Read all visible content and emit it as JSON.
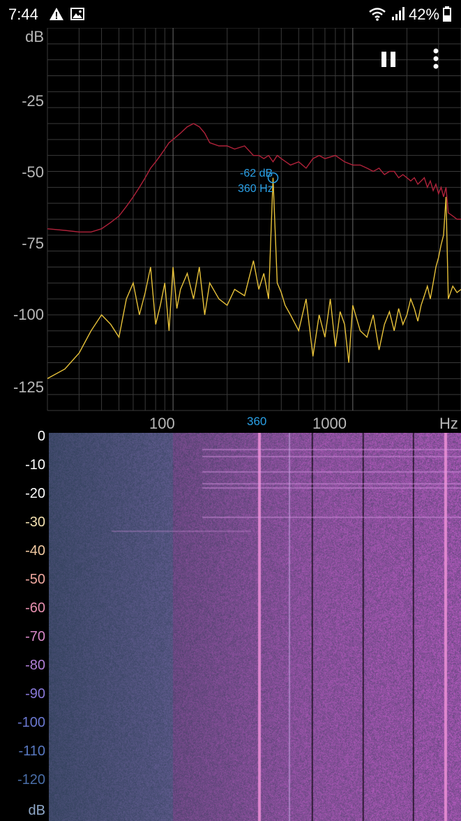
{
  "status_bar": {
    "time": "7:44",
    "battery": "42%",
    "icons": [
      "warning-icon",
      "gallery-icon",
      "wifi-icon",
      "signal-icon",
      "battery-icon"
    ]
  },
  "spectrum": {
    "y_unit": "dB",
    "y_ticks": [
      "-25",
      "-50",
      "-75",
      "-100",
      "-125"
    ],
    "x_ticks": [
      "100",
      "1000"
    ],
    "x_unit": "Hz",
    "marker_freq_label": "360",
    "peak": {
      "db_label": "-62 dB",
      "hz_label": "360 Hz"
    },
    "colors": {
      "grid": "#3a3a3a",
      "live_trace": "#e8c23a",
      "peak_hold_trace": "#b0223a",
      "marker": "#2aa0e6",
      "label": "#b8b8b8"
    }
  },
  "toolbar": {
    "pause_icon": "pause-icon",
    "menu_icon": "more-vertical-icon"
  },
  "spectrogram": {
    "scale_labels": [
      "0",
      "-10",
      "-20",
      "-30",
      "-40",
      "-50",
      "-60",
      "-70",
      "-80",
      "-90",
      "-100",
      "-110",
      "-120"
    ],
    "scale_unit": "dB",
    "scale_colors": [
      "#ffffff",
      "#ffffff",
      "#ffffff",
      "#f2e0b0",
      "#f0c8a0",
      "#f0a8a0",
      "#e890b0",
      "#d888c8",
      "#b080d8",
      "#8878d8",
      "#6a78d0",
      "#5878c0",
      "#4a6ea8"
    ]
  },
  "chart_data": {
    "type": "line",
    "xlabel": "Hz",
    "ylabel": "dB",
    "x_scale": "log",
    "xlim": [
      20,
      4000
    ],
    "ylim": [
      -135,
      -15
    ],
    "series": [
      {
        "x": [
          20,
          25,
          30,
          35,
          40,
          45,
          50,
          55,
          60,
          65,
          70,
          75,
          80,
          85,
          90,
          95,
          100,
          105,
          110,
          120,
          130,
          140,
          150,
          160,
          180,
          200,
          220,
          250,
          280,
          300,
          320,
          340,
          360,
          380,
          400,
          420,
          450,
          500,
          550,
          600,
          650,
          700,
          750,
          800,
          850,
          900,
          950,
          1000,
          1100,
          1200,
          1300,
          1400,
          1500,
          1600,
          1700,
          1800,
          1900,
          2000,
          2100,
          2200,
          2300,
          2400,
          2500,
          2600,
          2700,
          2800,
          2900,
          3000,
          3100,
          3200,
          3300,
          3400,
          3600,
          3800,
          4000
        ],
        "values": [
          -125,
          -122,
          -117,
          -110,
          -105,
          -108,
          -112,
          -100,
          -95,
          -105,
          -98,
          -90,
          -108,
          -102,
          -95,
          -110,
          -90,
          -103,
          -97,
          -92,
          -100,
          -90,
          -105,
          -95,
          -100,
          -102,
          -97,
          -99,
          -88,
          -97,
          -92,
          -100,
          -62,
          -95,
          -98,
          -102,
          -105,
          -110,
          -100,
          -118,
          -105,
          -112,
          -100,
          -115,
          -104,
          -108,
          -120,
          -102,
          -110,
          -112,
          -105,
          -116,
          -108,
          -104,
          -110,
          -103,
          -108,
          -105,
          -100,
          -103,
          -107,
          -102,
          -99,
          -96,
          -100,
          -95,
          -90,
          -87,
          -83,
          -80,
          -68,
          -100,
          -96,
          -98,
          -97
        ]
      },
      {
        "x": [
          20,
          25,
          30,
          35,
          40,
          45,
          50,
          55,
          60,
          65,
          70,
          75,
          80,
          85,
          90,
          95,
          100,
          110,
          120,
          130,
          140,
          150,
          160,
          180,
          200,
          220,
          250,
          280,
          300,
          320,
          340,
          360,
          380,
          400,
          450,
          500,
          550,
          600,
          650,
          700,
          800,
          900,
          1000,
          1100,
          1200,
          1300,
          1400,
          1500,
          1600,
          1700,
          1800,
          1900,
          2000,
          2100,
          2200,
          2300,
          2400,
          2500,
          2600,
          2700,
          2800,
          2900,
          3000,
          3100,
          3200,
          3300,
          3400,
          3600,
          3800,
          4000
        ],
        "values": [
          -78,
          -78.5,
          -79,
          -79,
          -78,
          -76,
          -74,
          -71,
          -68,
          -65,
          -62,
          -59,
          -57,
          -55,
          -53,
          -51,
          -50,
          -48,
          -46,
          -45,
          -46,
          -48,
          -51,
          -52,
          -52,
          -53,
          -52,
          -55,
          -55,
          -56,
          -55,
          -57,
          -55,
          -56,
          -58,
          -57,
          -59,
          -56,
          -55,
          -56,
          -55,
          -57,
          -58,
          -58,
          -59,
          -60,
          -59,
          -61,
          -60,
          -60,
          -62,
          -61,
          -62,
          -63,
          -62,
          -64,
          -63,
          -62,
          -65,
          -63,
          -66,
          -64,
          -67,
          -65,
          -68,
          -65,
          -73,
          -74,
          -75,
          -75
        ]
      }
    ]
  }
}
